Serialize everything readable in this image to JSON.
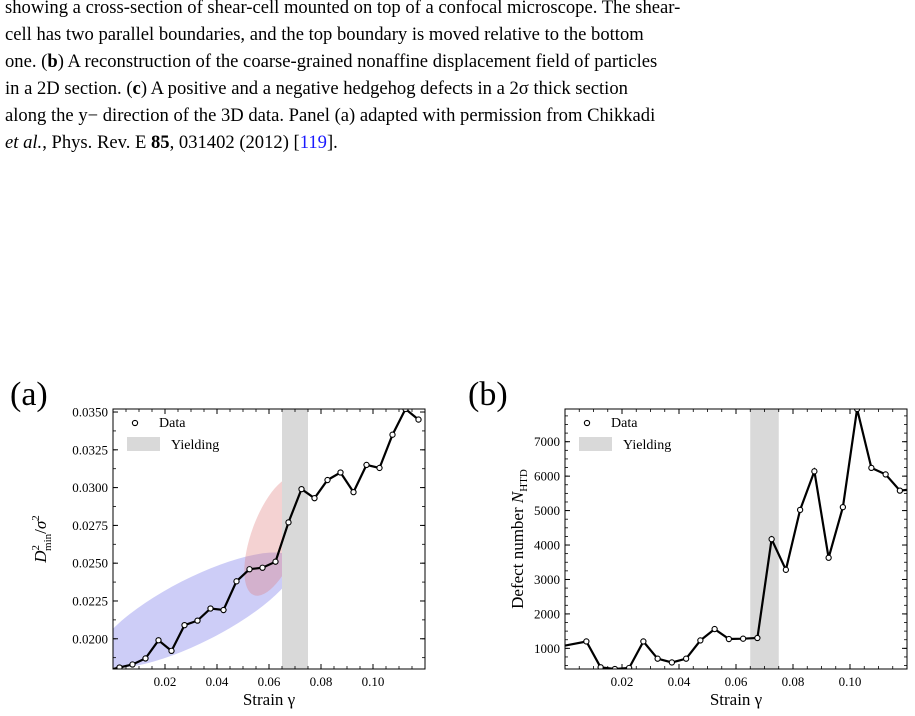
{
  "caption": {
    "lines": [
      [
        "showing a cross-section of shear-cell mounted on top of a confocal microscope. The shear-"
      ],
      [
        "cell has two parallel boundaries, and the top boundary is moved relative to the bottom"
      ],
      [
        "one. (",
        {
          "b": "b"
        },
        ") A reconstruction of the coarse-grained nonaffine displacement field of particles"
      ],
      [
        "in a 2D section. (",
        {
          "b": "c"
        },
        ") A positive and a negative hedgehog defects in a 2σ thick section"
      ],
      [
        "along the y− direction of the 3D data. Panel (a) adapted with permission from Chikkadi"
      ],
      [
        {
          "i": "et al."
        },
        ", Phys. Rev. E ",
        {
          "b": "85"
        },
        ", 031402 (2012) [",
        {
          "ref": "119"
        },
        "]."
      ]
    ]
  },
  "panels": {
    "a_label": "(a)",
    "b_label": "(b)"
  },
  "chart_data": [
    {
      "type": "line",
      "panel": "a",
      "xlabel": "Strain γ",
      "ylabel": "D²min/σ²",
      "xlim": [
        0.0,
        0.12
      ],
      "ylim": [
        0.018,
        0.0352
      ],
      "xticks": [
        "0.02",
        "0.04",
        "0.06",
        "0.08",
        "0.10"
      ],
      "yticks": [
        "0.0200",
        "0.0225",
        "0.0250",
        "0.0275",
        "0.0300",
        "0.0325",
        "0.0350"
      ],
      "legend": {
        "data_label": "Data",
        "yield_label": "Yielding",
        "placement": "top-left"
      },
      "yielding_band": [
        0.065,
        0.075
      ],
      "highlight_colors": {
        "blue": "#6f6fe8",
        "red": "#e07f7f"
      },
      "x": [
        0.0,
        0.0025,
        0.0075,
        0.0125,
        0.0175,
        0.0225,
        0.0275,
        0.0325,
        0.0375,
        0.0425,
        0.0475,
        0.0525,
        0.0575,
        0.0625,
        0.0675,
        0.0725,
        0.0775,
        0.0825,
        0.0875,
        0.0925,
        0.0975,
        0.1025,
        0.1075,
        0.1125,
        0.1175
      ],
      "y": [
        0.018,
        0.0181,
        0.0183,
        0.0187,
        0.0199,
        0.0192,
        0.0209,
        0.0212,
        0.022,
        0.0219,
        0.0238,
        0.0246,
        0.0247,
        0.0251,
        0.0277,
        0.0299,
        0.0293,
        0.0305,
        0.031,
        0.0297,
        0.0315,
        0.0313,
        0.0335,
        0.0352,
        0.0345
      ],
      "markers": [
        false,
        true,
        true,
        true,
        true,
        true,
        true,
        true,
        true,
        true,
        true,
        true,
        true,
        true,
        true,
        true,
        true,
        true,
        true,
        true,
        true,
        true,
        true,
        true,
        true
      ]
    },
    {
      "type": "line",
      "panel": "b",
      "xlabel": "Strain γ",
      "ylabel": "Defect number N_HTD",
      "xlim": [
        0.0,
        0.12
      ],
      "ylim": [
        400,
        7950
      ],
      "xticks": [
        "0.02",
        "0.04",
        "0.06",
        "0.08",
        "0.10"
      ],
      "yticks": [
        "1000",
        "2000",
        "3000",
        "4000",
        "5000",
        "6000",
        "7000"
      ],
      "legend": {
        "data_label": "Data",
        "yield_label": "Yielding",
        "placement": "top-left"
      },
      "yielding_band": [
        0.065,
        0.075
      ],
      "x": [
        0.0,
        0.0075,
        0.0125,
        0.0175,
        0.0225,
        0.0275,
        0.0325,
        0.0375,
        0.0425,
        0.0475,
        0.0525,
        0.0575,
        0.0625,
        0.0675,
        0.0725,
        0.0775,
        0.0825,
        0.0875,
        0.0925,
        0.0975,
        0.1025,
        0.1075,
        0.1125,
        0.1175,
        0.12
      ],
      "y": [
        1080,
        1200,
        450,
        400,
        430,
        1200,
        700,
        590,
        700,
        1230,
        1560,
        1270,
        1280,
        1300,
        4170,
        3280,
        5020,
        6140,
        3630,
        5100,
        7950,
        6240,
        6050,
        5580,
        5600
      ],
      "markers": [
        false,
        true,
        true,
        true,
        true,
        true,
        true,
        true,
        true,
        true,
        true,
        true,
        true,
        true,
        true,
        true,
        true,
        true,
        true,
        true,
        true,
        true,
        true,
        true,
        false
      ]
    }
  ]
}
